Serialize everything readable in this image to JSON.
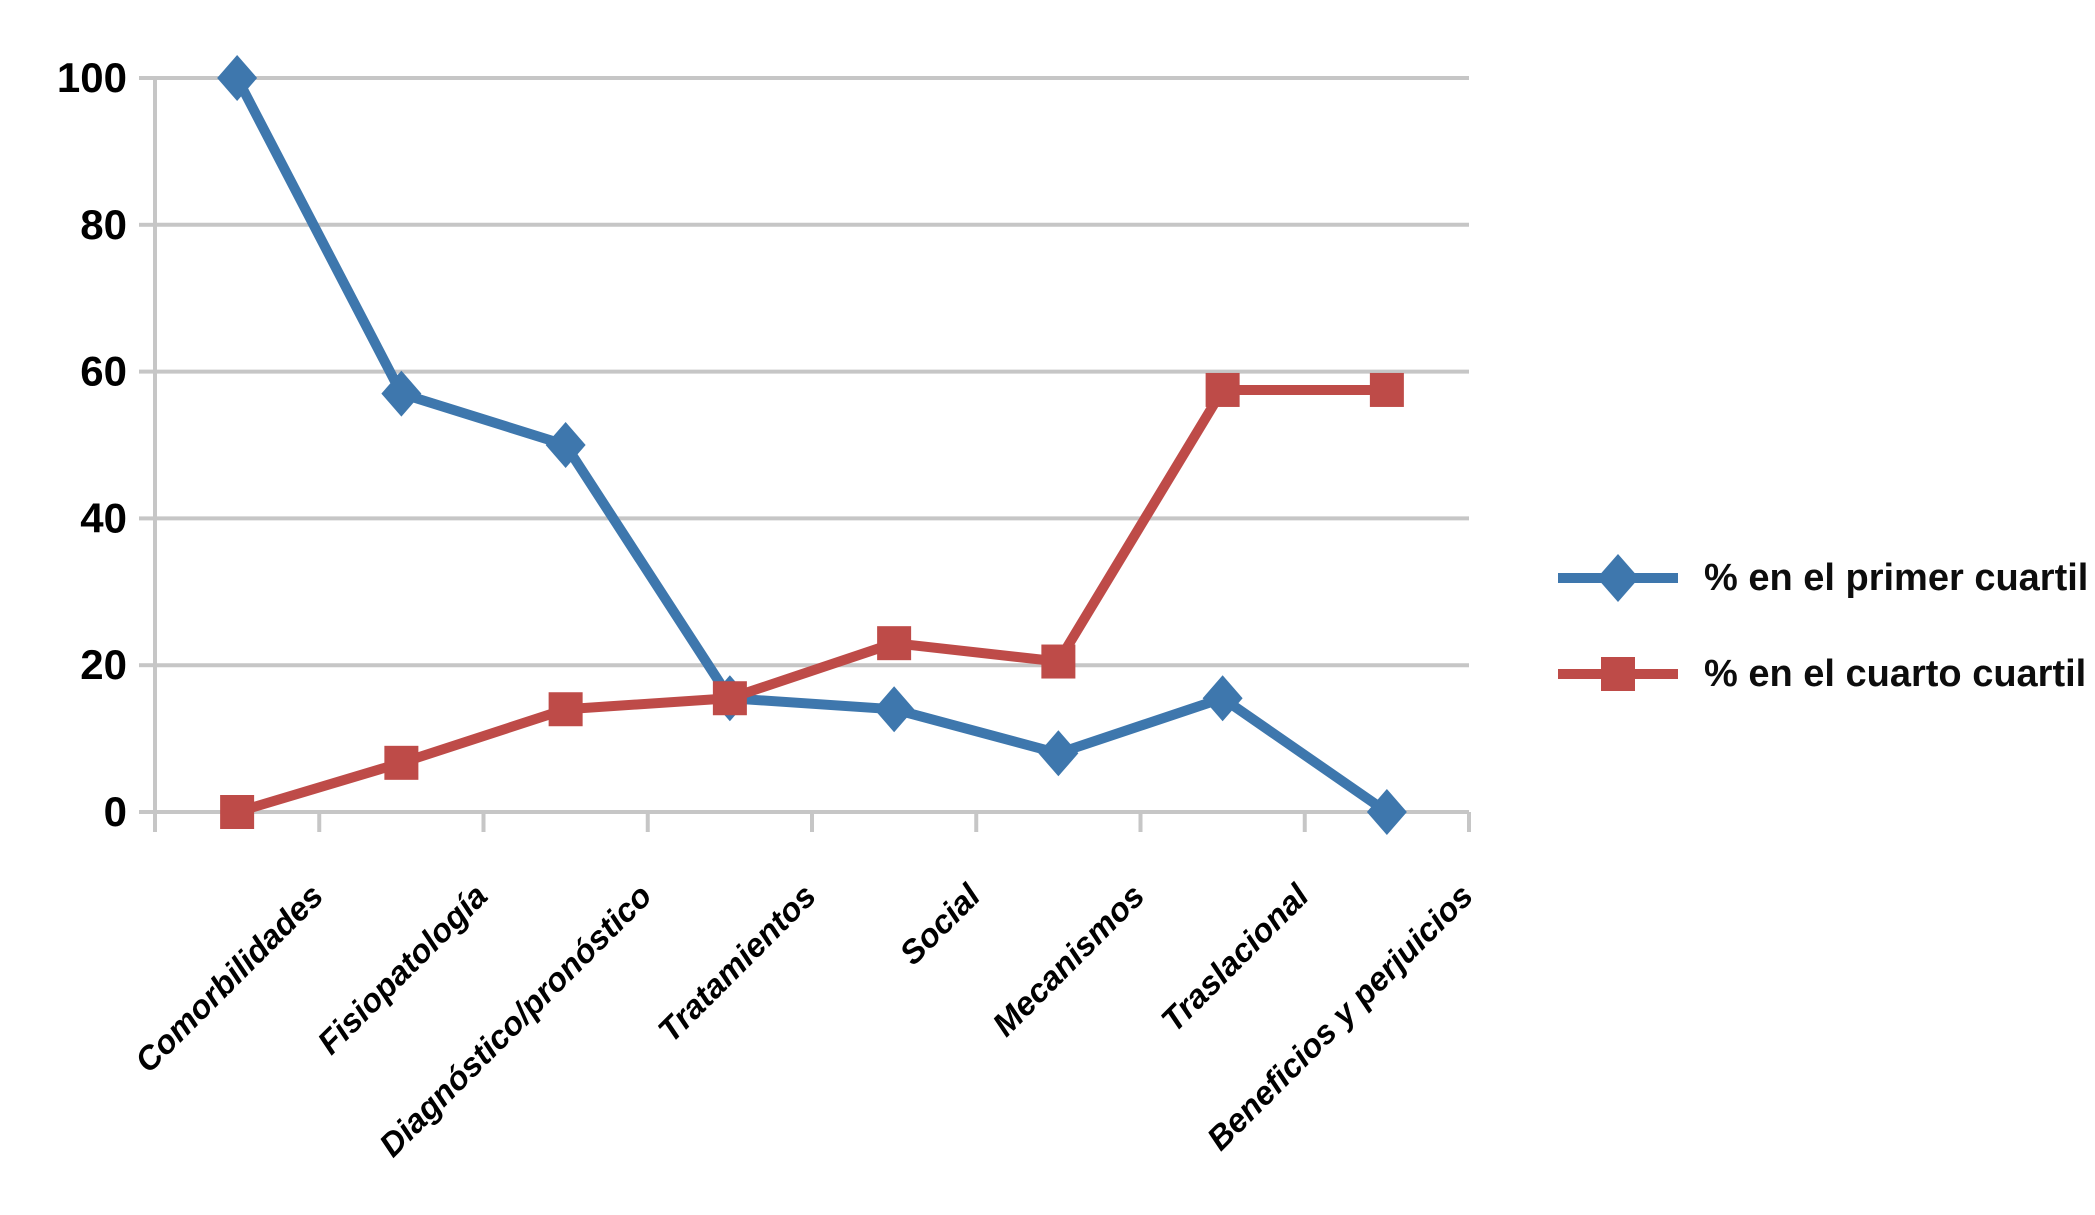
{
  "chart_data": {
    "type": "line",
    "title": "",
    "categories": [
      "Comorbilidades",
      "Fisiopatología",
      "Diagnóstico/pronóstico",
      "Tratamientos",
      "Social",
      "Mecanismos",
      "Traslacional",
      "Beneficios y perjuicios"
    ],
    "series": [
      {
        "id": "primer-cuartil",
        "name": "% en el primer cuartil",
        "marker": "diamond",
        "color": "#3E77AD",
        "values": [
          100,
          57,
          50,
          15.5,
          14,
          8,
          15.5,
          0
        ]
      },
      {
        "id": "cuarto-cuartil",
        "name": "% en el cuarto cuartil",
        "marker": "square",
        "color": "#BE4B48",
        "values": [
          0,
          6.7,
          14,
          15.5,
          23,
          20.5,
          57.5,
          57.5
        ]
      }
    ],
    "xlabel": "",
    "ylabel": "",
    "ylim": [
      0,
      100
    ],
    "yticks": [
      0,
      20,
      40,
      60,
      80,
      100
    ],
    "grid": "horizontal-only",
    "grid_color": "#C6C6C6",
    "text_color": "#000000",
    "legend_position": "right"
  }
}
